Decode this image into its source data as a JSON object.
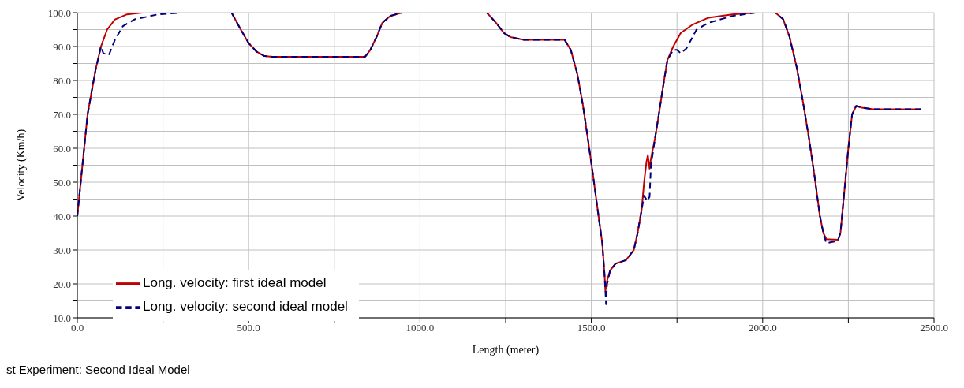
{
  "chart_data": {
    "type": "line",
    "xlabel": "Length (meter)",
    "ylabel": "Velocity (Km/h)",
    "xlim": [
      0,
      2500
    ],
    "ylim": [
      10,
      100
    ],
    "xticks": [
      {
        "value": 0,
        "label": "0.0"
      },
      {
        "value": 250,
        "label": null
      },
      {
        "value": 500,
        "label": "500.0"
      },
      {
        "value": 750,
        "label": null
      },
      {
        "value": 1000,
        "label": "1000.0"
      },
      {
        "value": 1250,
        "label": null
      },
      {
        "value": 1500,
        "label": "1500.0"
      },
      {
        "value": 1750,
        "label": null
      },
      {
        "value": 2000,
        "label": "2000.0"
      },
      {
        "value": 2250,
        "label": null
      },
      {
        "value": 2500,
        "label": "2500.0"
      }
    ],
    "yticks": [
      {
        "value": 10,
        "label": "10.0"
      },
      {
        "value": 15,
        "label": null
      },
      {
        "value": 20,
        "label": "20.0"
      },
      {
        "value": 25,
        "label": null
      },
      {
        "value": 30,
        "label": "30.0"
      },
      {
        "value": 35,
        "label": null
      },
      {
        "value": 40,
        "label": "40.0"
      },
      {
        "value": 45,
        "label": null
      },
      {
        "value": 50,
        "label": "50.0"
      },
      {
        "value": 55,
        "label": null
      },
      {
        "value": 60,
        "label": "60.0"
      },
      {
        "value": 65,
        "label": null
      },
      {
        "value": 70,
        "label": "70.0"
      },
      {
        "value": 75,
        "label": null
      },
      {
        "value": 80,
        "label": "80.0"
      },
      {
        "value": 85,
        "label": null
      },
      {
        "value": 90,
        "label": "90.0"
      },
      {
        "value": 95,
        "label": null
      },
      {
        "value": 100,
        "label": "100.0"
      }
    ],
    "grid": true,
    "legend": "bottom left",
    "marker": "none",
    "annotations": [
      "st Experiment: Second Ideal Model"
    ],
    "series": [
      {
        "name": "Long. velocity: first ideal model",
        "color": "#c00000",
        "line_style": "solid",
        "x": [
          0,
          30,
          53,
          69,
          87,
          110,
          145,
          190,
          450,
          477,
          500,
          523,
          546,
          569,
          840,
          855,
          874,
          890,
          913,
          947,
          1195,
          1222,
          1245,
          1264,
          1303,
          1422,
          1440,
          1459,
          1475,
          1491,
          1505,
          1521,
          1532,
          1539,
          1541,
          1546,
          1555,
          1571,
          1601,
          1624,
          1635,
          1647,
          1654,
          1661,
          1665,
          1670,
          1674,
          1686,
          1697,
          1709,
          1722,
          1739,
          1761,
          1796,
          1842,
          1911,
          1979,
          2037,
          2060,
          2078,
          2099,
          2117,
          2135,
          2151,
          2167,
          2177,
          2186,
          2220,
          2227,
          2239,
          2250,
          2261,
          2273,
          2289,
          2323,
          2461
        ],
        "values": [
          40,
          70,
          83,
          90,
          95,
          98,
          99.5,
          100,
          100,
          95,
          91,
          88.5,
          87.2,
          87,
          87,
          89,
          93,
          97,
          99,
          100,
          100,
          97,
          94,
          92.8,
          92,
          92,
          89,
          82,
          73,
          62,
          52,
          40,
          32,
          22,
          18,
          21,
          24,
          26,
          27,
          30,
          35,
          42,
          50,
          56,
          58,
          54,
          57,
          63,
          70,
          78,
          86,
          90,
          94,
          96.5,
          98.5,
          99.5,
          100,
          100,
          98,
          93,
          84,
          74,
          63,
          52,
          40,
          35,
          33.2,
          33,
          35,
          48,
          60,
          70,
          72.5,
          72,
          71.5,
          71.5
        ]
      },
      {
        "name": "Long. velocity: second ideal model",
        "color": "#000080",
        "line_style": "dashed",
        "x": [
          0,
          30,
          53,
          69,
          76,
          92,
          110,
          133,
          167,
          236,
          305,
          450,
          477,
          500,
          523,
          546,
          569,
          840,
          855,
          874,
          890,
          913,
          947,
          1195,
          1222,
          1245,
          1264,
          1303,
          1422,
          1440,
          1459,
          1475,
          1491,
          1505,
          1521,
          1532,
          1539,
          1543,
          1546,
          1555,
          1571,
          1601,
          1624,
          1635,
          1647,
          1654,
          1663,
          1670,
          1674,
          1686,
          1697,
          1709,
          1722,
          1739,
          1750,
          1761,
          1778,
          1807,
          1842,
          1911,
          1979,
          2037,
          2060,
          2078,
          2099,
          2117,
          2135,
          2151,
          2167,
          2177,
          2186,
          2209,
          2220,
          2227,
          2239,
          2250,
          2261,
          2273,
          2289,
          2323,
          2461
        ],
        "values": [
          40,
          70,
          83,
          90,
          88,
          87.5,
          92,
          96,
          98,
          99.5,
          100,
          100,
          95,
          91,
          88.5,
          87.2,
          87,
          87,
          89,
          93,
          97,
          99,
          100,
          100,
          97,
          94,
          92.8,
          92,
          92,
          89,
          82,
          73,
          62,
          52,
          40,
          32,
          22,
          14,
          20,
          24,
          26,
          27,
          30,
          35,
          42,
          46,
          44.5,
          45.7,
          55,
          63,
          70,
          78,
          86,
          89,
          89,
          88,
          89.5,
          95,
          97,
          99,
          100,
          100,
          98,
          93,
          84,
          74,
          63,
          52,
          40,
          35,
          32,
          32.5,
          33,
          35,
          48,
          60,
          70,
          72.5,
          72,
          71.5,
          71.5
        ]
      }
    ]
  }
}
